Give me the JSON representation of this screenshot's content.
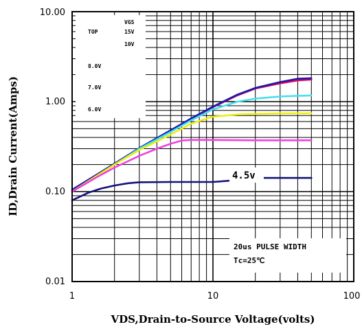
{
  "chart_data": {
    "type": "line",
    "xlabel": "VDS,Drain-to-Source Voltage(volts)",
    "ylabel": "ID,Drain Current(Amps)",
    "xscale": "log",
    "yscale": "log",
    "xlim": [
      1,
      100
    ],
    "ylim": [
      0.01,
      10
    ],
    "grid": true,
    "x_ticks": [
      "1",
      "10",
      "100"
    ],
    "y_ticks": [
      "0.01",
      "0.10",
      "1.00",
      "10.00"
    ],
    "legend": {
      "header": "VGS",
      "top_label": "TOP",
      "entries": [
        "15V",
        "10V",
        "8.0V",
        "7.0V",
        "6.0V"
      ],
      "placement": "top-left"
    },
    "annotations": {
      "pulse_line1": "20us PULSE WIDTH",
      "pulse_line2": "Tc=25℃",
      "curve_label": "4.5v"
    },
    "series": [
      {
        "color": "#e0006a",
        "x": [
          1,
          1.5,
          2,
          3,
          5,
          7,
          10,
          15,
          20,
          30,
          40,
          50
        ],
        "y": [
          0.1,
          0.15,
          0.2,
          0.3,
          0.47,
          0.64,
          0.87,
          1.18,
          1.4,
          1.6,
          1.72,
          1.76
        ]
      },
      {
        "color": "#1a1aa8",
        "x": [
          1,
          1.5,
          2,
          3,
          5,
          7,
          10,
          15,
          20,
          30,
          40,
          50
        ],
        "y": [
          0.105,
          0.155,
          0.205,
          0.305,
          0.48,
          0.65,
          0.88,
          1.2,
          1.42,
          1.65,
          1.8,
          1.82
        ]
      },
      {
        "color": "#44e0f0",
        "x": [
          1,
          1.5,
          2,
          3,
          5,
          7,
          10,
          15,
          20,
          30,
          40,
          50
        ],
        "y": [
          0.1,
          0.15,
          0.2,
          0.3,
          0.46,
          0.62,
          0.82,
          1.0,
          1.08,
          1.14,
          1.16,
          1.17
        ]
      },
      {
        "color": "#eeee10",
        "x": [
          1,
          1.5,
          2,
          3,
          5,
          7,
          10,
          15,
          20,
          30,
          40,
          50
        ],
        "y": [
          0.1,
          0.15,
          0.2,
          0.29,
          0.43,
          0.57,
          0.68,
          0.72,
          0.73,
          0.74,
          0.74,
          0.74
        ]
      },
      {
        "color": "#f040e0",
        "x": [
          1,
          1.5,
          2,
          3,
          4,
          5,
          6,
          7,
          10,
          20,
          30,
          50
        ],
        "y": [
          0.1,
          0.145,
          0.185,
          0.25,
          0.3,
          0.34,
          0.37,
          0.375,
          0.375,
          0.372,
          0.372,
          0.372
        ]
      },
      {
        "color": "#12127a",
        "x": [
          1,
          1.3,
          1.6,
          2,
          2.5,
          3,
          5,
          10,
          13
        ],
        "y": [
          0.08,
          0.097,
          0.108,
          0.117,
          0.124,
          0.127,
          0.128,
          0.128,
          0.132
        ]
      },
      {
        "color": "#12127a",
        "x": [
          23,
          50
        ],
        "y": [
          0.142,
          0.142
        ]
      }
    ]
  }
}
